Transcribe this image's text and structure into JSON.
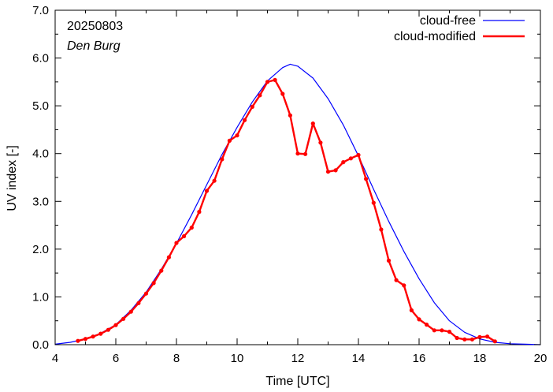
{
  "chart_data": {
    "type": "line",
    "xlabel": "Time  [UTC]",
    "ylabel": "UV index  [-]",
    "xlim": [
      4,
      20
    ],
    "ylim": [
      0,
      7
    ],
    "xticks": [
      4,
      6,
      8,
      10,
      12,
      14,
      16,
      18,
      20
    ],
    "xtick_labels": [
      "4",
      "6",
      "8",
      "10",
      "12",
      "14",
      "16",
      "18",
      "20"
    ],
    "yticks": [
      0,
      1,
      2,
      3,
      4,
      5,
      6,
      7
    ],
    "ytick_labels": [
      "0.0",
      "1.0",
      "2.0",
      "3.0",
      "4.0",
      "5.0",
      "6.0",
      "7.0"
    ],
    "grid": false,
    "legend_position": "top-right",
    "annotations": {
      "date": "20250803",
      "location": "Den Burg"
    },
    "series": [
      {
        "name": "cloud-free",
        "color": "#0000ff",
        "marker": "none",
        "x": [
          4.0,
          4.5,
          5.0,
          5.5,
          6.0,
          6.5,
          7.0,
          7.5,
          8.0,
          8.5,
          9.0,
          9.5,
          10.0,
          10.5,
          11.0,
          11.5,
          11.75,
          12.0,
          12.5,
          13.0,
          13.5,
          14.0,
          14.5,
          15.0,
          15.5,
          16.0,
          16.5,
          17.0,
          17.5,
          18.0,
          18.5,
          19.0,
          19.5,
          20.0
        ],
        "y": [
          0.01,
          0.05,
          0.12,
          0.24,
          0.42,
          0.72,
          1.1,
          1.58,
          2.12,
          2.72,
          3.35,
          3.98,
          4.55,
          5.08,
          5.52,
          5.8,
          5.87,
          5.83,
          5.58,
          5.15,
          4.6,
          3.95,
          3.25,
          2.58,
          1.95,
          1.38,
          0.88,
          0.5,
          0.26,
          0.12,
          0.05,
          0.02,
          0.01,
          0.0
        ]
      },
      {
        "name": "cloud-modified",
        "color": "#ff0000",
        "marker": "circle",
        "x": [
          4.75,
          5.0,
          5.25,
          5.5,
          5.75,
          6.0,
          6.25,
          6.5,
          6.75,
          7.0,
          7.25,
          7.5,
          7.75,
          8.0,
          8.25,
          8.5,
          8.75,
          9.0,
          9.25,
          9.5,
          9.75,
          10.0,
          10.25,
          10.5,
          10.75,
          11.0,
          11.25,
          11.5,
          11.75,
          12.0,
          12.25,
          12.5,
          12.75,
          13.0,
          13.25,
          13.5,
          13.75,
          14.0,
          14.25,
          14.5,
          14.75,
          15.0,
          15.25,
          15.5,
          15.75,
          16.0,
          16.25,
          16.5,
          16.75,
          17.0,
          17.25,
          17.5,
          17.75,
          18.0,
          18.25,
          18.5
        ],
        "y": [
          0.08,
          0.12,
          0.17,
          0.23,
          0.31,
          0.41,
          0.54,
          0.69,
          0.87,
          1.07,
          1.29,
          1.55,
          1.83,
          2.13,
          2.27,
          2.45,
          2.78,
          3.22,
          3.43,
          3.88,
          4.27,
          4.38,
          4.7,
          4.98,
          5.22,
          5.5,
          5.54,
          5.25,
          4.8,
          4.0,
          3.99,
          4.63,
          4.23,
          3.62,
          3.65,
          3.82,
          3.9,
          3.97,
          3.47,
          2.97,
          2.41,
          1.76,
          1.35,
          1.24,
          0.72,
          0.53,
          0.42,
          0.3,
          0.3,
          0.27,
          0.14,
          0.11,
          0.11,
          0.16,
          0.17,
          0.07
        ]
      }
    ]
  }
}
